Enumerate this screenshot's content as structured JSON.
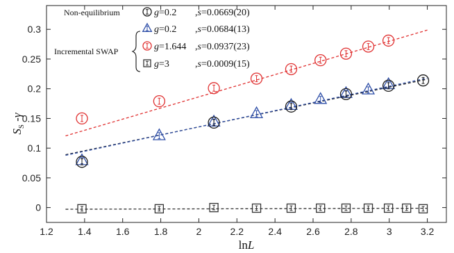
{
  "chart_data": {
    "type": "scatter",
    "xlabel": "lnL",
    "ylabel": "S_S -γ",
    "xlim": [
      1.2,
      3.3
    ],
    "ylim": [
      -0.025,
      0.34
    ],
    "xticks": [
      1.2,
      1.4,
      1.6,
      1.8,
      2.0,
      2.2,
      2.4,
      2.6,
      2.8,
      3.0,
      3.2
    ],
    "xtick_labels": [
      "1.2",
      "1.4",
      "1.6",
      "1.8",
      "2",
      "2.2",
      "2.4",
      "2.6",
      "2.8",
      "3",
      "3.2"
    ],
    "yticks": [
      0,
      0.05,
      0.1,
      0.15,
      0.2,
      0.25,
      0.3
    ],
    "ytick_labels": [
      "0",
      "0.05",
      "0.1",
      "0.15",
      "0.2",
      "0.25",
      "0.3"
    ],
    "legend": {
      "placement": "top-left",
      "group1_label": "Non-equilibrium",
      "group2_label": "Incremental SWAP"
    },
    "series": [
      {
        "group": "Non-equilibrium",
        "marker": "circle",
        "color": "#1a1a1a",
        "g_label": "g=0.2",
        "s_label": ",s=0.0669(20)",
        "x": [
          1.386,
          2.079,
          2.485,
          2.773,
          2.996,
          3.178
        ],
        "y": [
          0.077,
          0.143,
          0.17,
          0.191,
          0.205,
          0.214
        ],
        "fit": {
          "slope": 0.0669,
          "intercept": 0.002,
          "x_range": [
            1.3,
            3.2
          ],
          "color": "#1a1a1a"
        }
      },
      {
        "group": "Incremental SWAP",
        "marker": "triangle",
        "color": "#2f4fa8",
        "g_label": "g=0.2",
        "s_label": ",s=0.0684(13)",
        "x": [
          1.386,
          1.792,
          2.079,
          2.303,
          2.485,
          2.639,
          2.773,
          2.89,
          2.996
        ],
        "y": [
          0.079,
          0.121,
          0.144,
          0.158,
          0.172,
          0.182,
          0.192,
          0.198,
          0.207
        ],
        "fit": {
          "slope": 0.0684,
          "intercept": -0.001,
          "x_range": [
            1.3,
            3.2
          ],
          "color": "#2f4fa8"
        }
      },
      {
        "group": "Incremental SWAP",
        "marker": "circle",
        "color": "#e03030",
        "g_label": "g=1.644",
        "s_label": ",s=0.0937(23)",
        "x": [
          1.386,
          1.792,
          2.079,
          2.303,
          2.485,
          2.639,
          2.773,
          2.89,
          2.996
        ],
        "y": [
          0.15,
          0.179,
          0.201,
          0.217,
          0.233,
          0.248,
          0.259,
          0.271,
          0.281
        ],
        "fit": {
          "slope": 0.0937,
          "intercept": -0.0011,
          "x_range": [
            1.3,
            3.2
          ],
          "color": "#e03030"
        }
      },
      {
        "group": "Incremental SWAP",
        "marker": "square",
        "color": "#333333",
        "g_label": "g=3",
        "s_label": ",s=0.0009(15)",
        "x": [
          1.386,
          1.792,
          2.079,
          2.303,
          2.485,
          2.639,
          2.773,
          2.89,
          2.996,
          3.091,
          3.178
        ],
        "y": [
          -0.002,
          -0.002,
          0.0,
          -0.001,
          -0.001,
          -0.001,
          -0.001,
          -0.001,
          -0.001,
          -0.001,
          -0.002
        ],
        "fit": {
          "slope": 0.0009,
          "intercept": -0.004,
          "x_range": [
            1.3,
            3.2
          ],
          "color": "#333333"
        }
      }
    ]
  }
}
